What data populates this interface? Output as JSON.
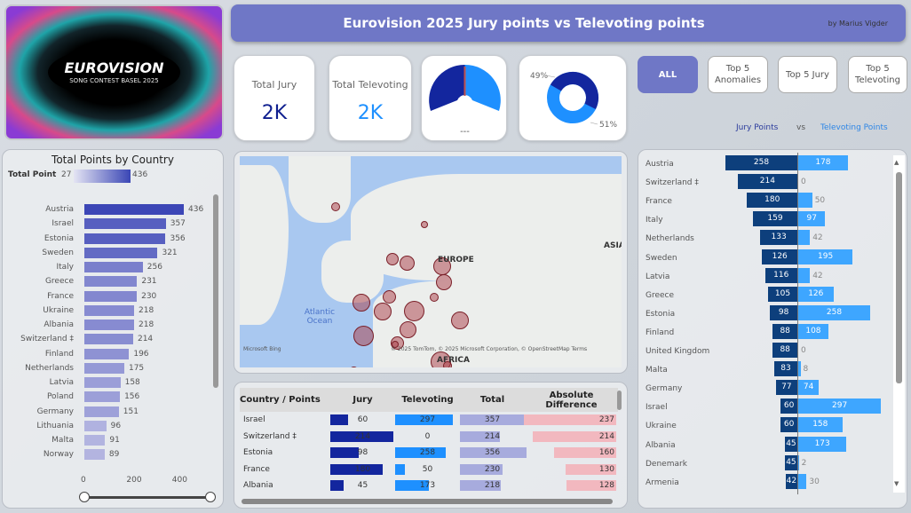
{
  "logo": {
    "text": "EUROVISION",
    "subtitle": "SONG CONTEST BASEL 2025"
  },
  "header": {
    "title": "Eurovision 2025 Jury points vs Televoting points",
    "author": "by Marius Vigder"
  },
  "kpis": [
    {
      "label": "Total Jury",
      "value": "2K",
      "color": "#0f1f8f"
    },
    {
      "label": "Total Televoting",
      "value": "2K",
      "color": "#1e90ff"
    }
  ],
  "gauge": {
    "label": "---",
    "jury_share": 0.49,
    "colors": {
      "jury": "#13269e",
      "televoting": "#1e90ff",
      "target": "#c0504d"
    }
  },
  "donut": {
    "slices": [
      {
        "label": "49%",
        "value": 49,
        "color": "#13269e"
      },
      {
        "label": "51%",
        "value": 51,
        "color": "#1e90ff"
      }
    ]
  },
  "filters": [
    {
      "label": "ALL",
      "active": true
    },
    {
      "label": "Top 5 Anomalies",
      "active": false
    },
    {
      "label": "Top 5 Jury",
      "active": false
    },
    {
      "label": "Top 5 Televoting",
      "active": false
    }
  ],
  "legend": {
    "jury": "Jury Points",
    "vs": "vs",
    "televoting": "Televoting Points"
  },
  "colors": {
    "accent": "#6f77c6",
    "jury_dark": "#0d3f7c",
    "televoting": "#3ea6ff",
    "abs_diff": "#f2b8bf"
  },
  "total_chart": {
    "title": "Total Points by Country",
    "legend_label": "Total Point",
    "legend_min": "27",
    "legend_max": "436",
    "axis_ticks": [
      "0",
      "200",
      "400"
    ],
    "categories": [
      "Austria",
      "Israel",
      "Estonia",
      "Sweden",
      "Italy",
      "Greece",
      "France",
      "Ukraine",
      "Albania",
      "Switzerland ‡",
      "Finland",
      "Netherlands",
      "Latvia",
      "Poland",
      "Germany",
      "Lithuania",
      "Malta",
      "Norway"
    ],
    "values": [
      436,
      357,
      356,
      321,
      256,
      231,
      230,
      218,
      218,
      214,
      196,
      175,
      158,
      156,
      151,
      96,
      91,
      89
    ]
  },
  "map": {
    "labels": {
      "ocean": "Atlantic Ocean",
      "europe": "EUROPE",
      "asia": "ASIA",
      "africa": "AFRICA"
    },
    "attribution": "© 2025 TomTom, © 2025 Microsoft Corporation, © OpenStreetMap  Terms",
    "brand": "Microsoft Bing"
  },
  "table": {
    "headers": [
      "Country / Points",
      "Jury",
      "Televoting",
      "Total",
      "Absolute Difference"
    ],
    "rows": [
      {
        "country": "Israel",
        "jury": "60",
        "televoting": "297",
        "total": "357",
        "abs_diff": "237"
      },
      {
        "country": "Switzerland ‡",
        "jury": "214",
        "televoting": "0",
        "total": "214",
        "abs_diff": "214"
      },
      {
        "country": "Estonia",
        "jury": "98",
        "televoting": "258",
        "total": "356",
        "abs_diff": "160"
      },
      {
        "country": "France",
        "jury": "180",
        "televoting": "50",
        "total": "230",
        "abs_diff": "130"
      },
      {
        "country": "Albania",
        "jury": "45",
        "televoting": "173",
        "total": "218",
        "abs_diff": "128"
      }
    ]
  },
  "diverging_chart": {
    "categories": [
      "Austria",
      "Switzerland ‡",
      "France",
      "Italy",
      "Netherlands",
      "Sweden",
      "Latvia",
      "Greece",
      "Estonia",
      "Finland",
      "United Kingdom",
      "Malta",
      "Germany",
      "Israel",
      "Ukraine",
      "Albania",
      "Denemark",
      "Armenia"
    ],
    "jury": [
      258,
      214,
      180,
      159,
      133,
      126,
      116,
      105,
      98,
      88,
      88,
      83,
      77,
      60,
      60,
      45,
      45,
      42
    ],
    "televoting": [
      178,
      0,
      50,
      97,
      42,
      195,
      42,
      126,
      258,
      108,
      0,
      8,
      74,
      297,
      158,
      173,
      2,
      30
    ]
  }
}
